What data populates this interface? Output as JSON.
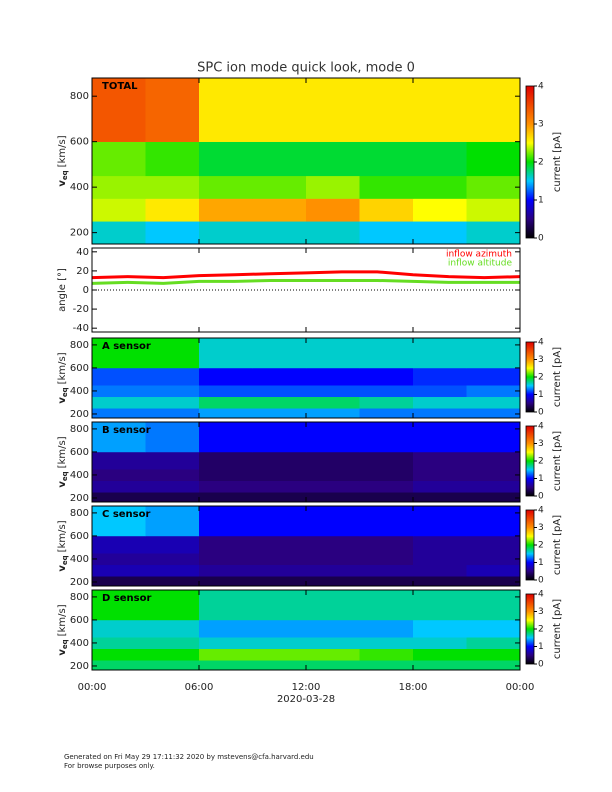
{
  "page_title": "SPC ion mode quick look, mode 0",
  "footer": [
    "Generated on Fri May 29 17:11:32 2020 by mstevens@cfa.harvard.edu",
    "For browse purposes only."
  ],
  "chart_data": [
    {
      "type": "heatmap",
      "label": "TOTAL",
      "ylabel": "v",
      "ylabel_sub": "eq",
      "ylabel_unit": "[km/s]",
      "xbins": [
        0,
        3,
        6,
        9,
        12,
        15,
        18,
        21,
        24
      ],
      "ybins": [
        150,
        250,
        350,
        450,
        600,
        880
      ],
      "values": [
        [
          1.6,
          1.5,
          1.6,
          1.6,
          1.6,
          1.5,
          1.5,
          1.6
        ],
        [
          2.4,
          2.6,
          2.9,
          2.9,
          3.0,
          2.7,
          2.5,
          2.4
        ],
        [
          2.3,
          2.3,
          2.2,
          2.2,
          2.3,
          2.1,
          2.1,
          2.2
        ],
        [
          2.2,
          2.1,
          1.9,
          1.9,
          1.9,
          1.9,
          1.9,
          2.0
        ],
        [
          3.4,
          3.3,
          2.6,
          2.6,
          2.6,
          2.6,
          2.6,
          2.6
        ]
      ],
      "ylim": [
        150,
        880
      ],
      "yticks": [
        200,
        400,
        600,
        800
      ],
      "zlim": [
        0,
        4
      ],
      "zticks": [
        0,
        1,
        2,
        3,
        4
      ],
      "zlabel": "current [pA]"
    },
    {
      "type": "line",
      "ylabel": "angle [°]",
      "ylim": [
        -44,
        44
      ],
      "yticks": [
        -40,
        -20,
        0,
        20,
        40
      ],
      "x": [
        0,
        2,
        4,
        6,
        8,
        10,
        12,
        14,
        16,
        18,
        20,
        22,
        24
      ],
      "series": [
        {
          "name": "inflow azimuth",
          "color": "#ff0000",
          "values": [
            13,
            14,
            13,
            15,
            16,
            17,
            18,
            19,
            19,
            16,
            14,
            13,
            14
          ]
        },
        {
          "name": "inflow altitude",
          "color": "#66dd22",
          "values": [
            7,
            8,
            7,
            9,
            9,
            10,
            10,
            10,
            10,
            9,
            8,
            8,
            8
          ]
        }
      ]
    },
    {
      "type": "heatmap",
      "label": "A sensor",
      "ylabel": "v",
      "ylabel_sub": "eq",
      "ylabel_unit": "[km/s]",
      "xbins": [
        0,
        3,
        6,
        9,
        12,
        15,
        18,
        21,
        24
      ],
      "ybins": [
        165,
        250,
        350,
        450,
        600,
        860
      ],
      "values": [
        [
          1.3,
          1.3,
          1.4,
          1.4,
          1.4,
          1.3,
          1.3,
          1.3
        ],
        [
          1.6,
          1.6,
          1.8,
          1.8,
          1.8,
          1.7,
          1.6,
          1.6
        ],
        [
          1.3,
          1.3,
          1.2,
          1.2,
          1.2,
          1.2,
          1.2,
          1.3
        ],
        [
          1.2,
          1.2,
          1.0,
          1.0,
          1.0,
          1.0,
          1.1,
          1.1
        ],
        [
          2.0,
          2.0,
          1.6,
          1.6,
          1.6,
          1.6,
          1.6,
          1.6
        ]
      ],
      "ylim": [
        165,
        860
      ],
      "yticks": [
        200,
        400,
        600,
        800
      ],
      "zlim": [
        0,
        4
      ],
      "zticks": [
        0,
        1,
        2,
        3,
        4
      ],
      "zlabel": "current [pA]"
    },
    {
      "type": "heatmap",
      "label": "B sensor",
      "ylabel": "v",
      "ylabel_sub": "eq",
      "ylabel_unit": "[km/s]",
      "xbins": [
        0,
        3,
        6,
        9,
        12,
        15,
        18,
        21,
        24
      ],
      "ybins": [
        165,
        250,
        350,
        450,
        600,
        860
      ],
      "values": [
        [
          0.3,
          0.3,
          0.3,
          0.3,
          0.3,
          0.3,
          0.3,
          0.3
        ],
        [
          0.6,
          0.6,
          0.5,
          0.5,
          0.5,
          0.5,
          0.6,
          0.6
        ],
        [
          0.5,
          0.5,
          0.4,
          0.4,
          0.4,
          0.4,
          0.5,
          0.5
        ],
        [
          0.6,
          0.6,
          0.4,
          0.4,
          0.4,
          0.4,
          0.5,
          0.5
        ],
        [
          1.4,
          1.3,
          1.0,
          1.0,
          1.0,
          1.0,
          1.0,
          1.0
        ]
      ],
      "ylim": [
        165,
        860
      ],
      "yticks": [
        200,
        400,
        600,
        800
      ],
      "zlim": [
        0,
        4
      ],
      "zticks": [
        0,
        1,
        2,
        3,
        4
      ],
      "zlabel": "current [pA]"
    },
    {
      "type": "heatmap",
      "label": "C sensor",
      "ylabel": "v",
      "ylabel_sub": "eq",
      "ylabel_unit": "[km/s]",
      "xbins": [
        0,
        3,
        6,
        9,
        12,
        15,
        18,
        21,
        24
      ],
      "ybins": [
        165,
        250,
        350,
        450,
        600,
        860
      ],
      "values": [
        [
          0.3,
          0.3,
          0.3,
          0.3,
          0.3,
          0.3,
          0.3,
          0.3
        ],
        [
          0.7,
          0.7,
          0.6,
          0.6,
          0.6,
          0.6,
          0.6,
          0.7
        ],
        [
          0.6,
          0.6,
          0.5,
          0.5,
          0.5,
          0.5,
          0.6,
          0.6
        ],
        [
          0.7,
          0.7,
          0.5,
          0.5,
          0.5,
          0.5,
          0.6,
          0.6
        ],
        [
          1.5,
          1.4,
          1.0,
          1.0,
          1.0,
          1.0,
          1.0,
          1.0
        ]
      ],
      "ylim": [
        165,
        860
      ],
      "yticks": [
        200,
        400,
        600,
        800
      ],
      "zlim": [
        0,
        4
      ],
      "zticks": [
        0,
        1,
        2,
        3,
        4
      ],
      "zlabel": "current [pA]"
    },
    {
      "type": "heatmap",
      "label": "D sensor",
      "ylabel": "v",
      "ylabel_sub": "eq",
      "ylabel_unit": "[km/s]",
      "xbins": [
        0,
        3,
        6,
        9,
        12,
        15,
        18,
        21,
        24
      ],
      "ybins": [
        165,
        250,
        350,
        450,
        600,
        860
      ],
      "values": [
        [
          1.8,
          1.8,
          1.8,
          1.8,
          1.8,
          1.8,
          1.8,
          1.8
        ],
        [
          2.0,
          2.0,
          2.2,
          2.2,
          2.2,
          2.1,
          2.0,
          2.0
        ],
        [
          1.7,
          1.7,
          1.6,
          1.6,
          1.6,
          1.6,
          1.6,
          1.7
        ],
        [
          1.6,
          1.6,
          1.4,
          1.4,
          1.4,
          1.4,
          1.5,
          1.5
        ],
        [
          2.0,
          2.0,
          1.7,
          1.7,
          1.7,
          1.7,
          1.7,
          1.7
        ]
      ],
      "ylim": [
        165,
        860
      ],
      "yticks": [
        200,
        400,
        600,
        800
      ],
      "zlim": [
        0,
        4
      ],
      "zticks": [
        0,
        1,
        2,
        3,
        4
      ],
      "zlabel": "current [pA]",
      "xlim": [
        0,
        24
      ],
      "xticks": [
        {
          "value": 0,
          "label": "00:00"
        },
        {
          "value": 6,
          "label": "06:00"
        },
        {
          "value": 12,
          "label": "12:00"
        },
        {
          "value": 18,
          "label": "18:00"
        },
        {
          "value": 24,
          "label": "00:00"
        }
      ],
      "xlabel": "2020-03-28"
    }
  ]
}
